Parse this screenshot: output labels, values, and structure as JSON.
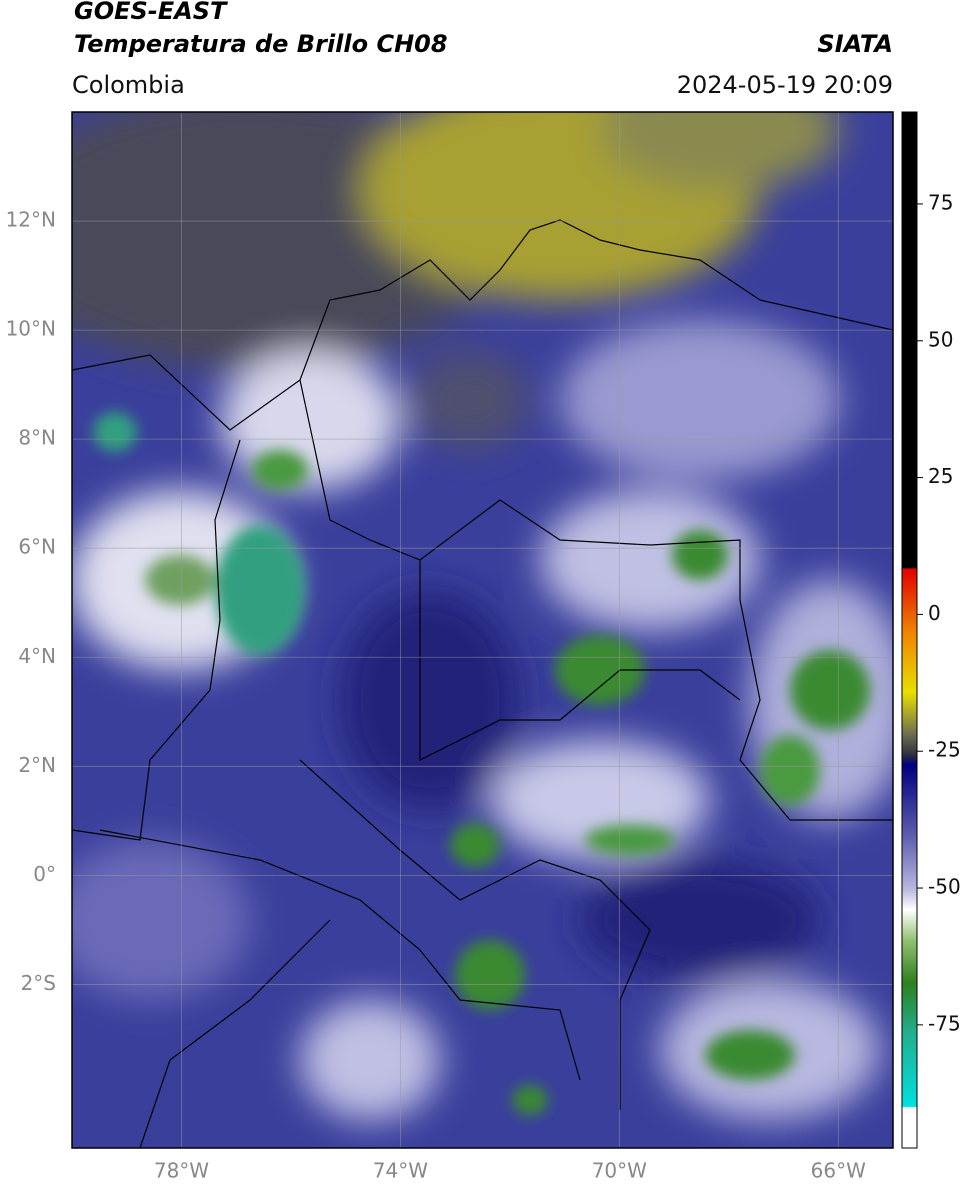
{
  "header": {
    "title": "GOES-EAST",
    "subtitle": "Temperatura de Brillo CH08",
    "source": "SIATA",
    "region": "Colombia",
    "datetime": "2024-05-19 20:09"
  },
  "map": {
    "latlim": [
      -5,
      14
    ],
    "lonlim": [
      -80,
      -65
    ],
    "lat_ticks": [
      {
        "value": 12,
        "label": "12°N"
      },
      {
        "value": 10,
        "label": "10°N"
      },
      {
        "value": 8,
        "label": "8°N"
      },
      {
        "value": 6,
        "label": "6°N"
      },
      {
        "value": 4,
        "label": "4°N"
      },
      {
        "value": 2,
        "label": "2°N"
      },
      {
        "value": 0,
        "label": "0°"
      },
      {
        "value": -2,
        "label": "2°S"
      }
    ],
    "lon_ticks": [
      {
        "value": -78,
        "label": "78°W"
      },
      {
        "value": -74,
        "label": "74°W"
      },
      {
        "value": -70,
        "label": "70°W"
      },
      {
        "value": -66,
        "label": "66°W"
      }
    ],
    "grid": true
  },
  "colorbar": {
    "lim": [
      -97.5,
      91.8
    ],
    "ticks": [
      75,
      50,
      25,
      0,
      -25,
      -50,
      -75
    ]
  }
}
